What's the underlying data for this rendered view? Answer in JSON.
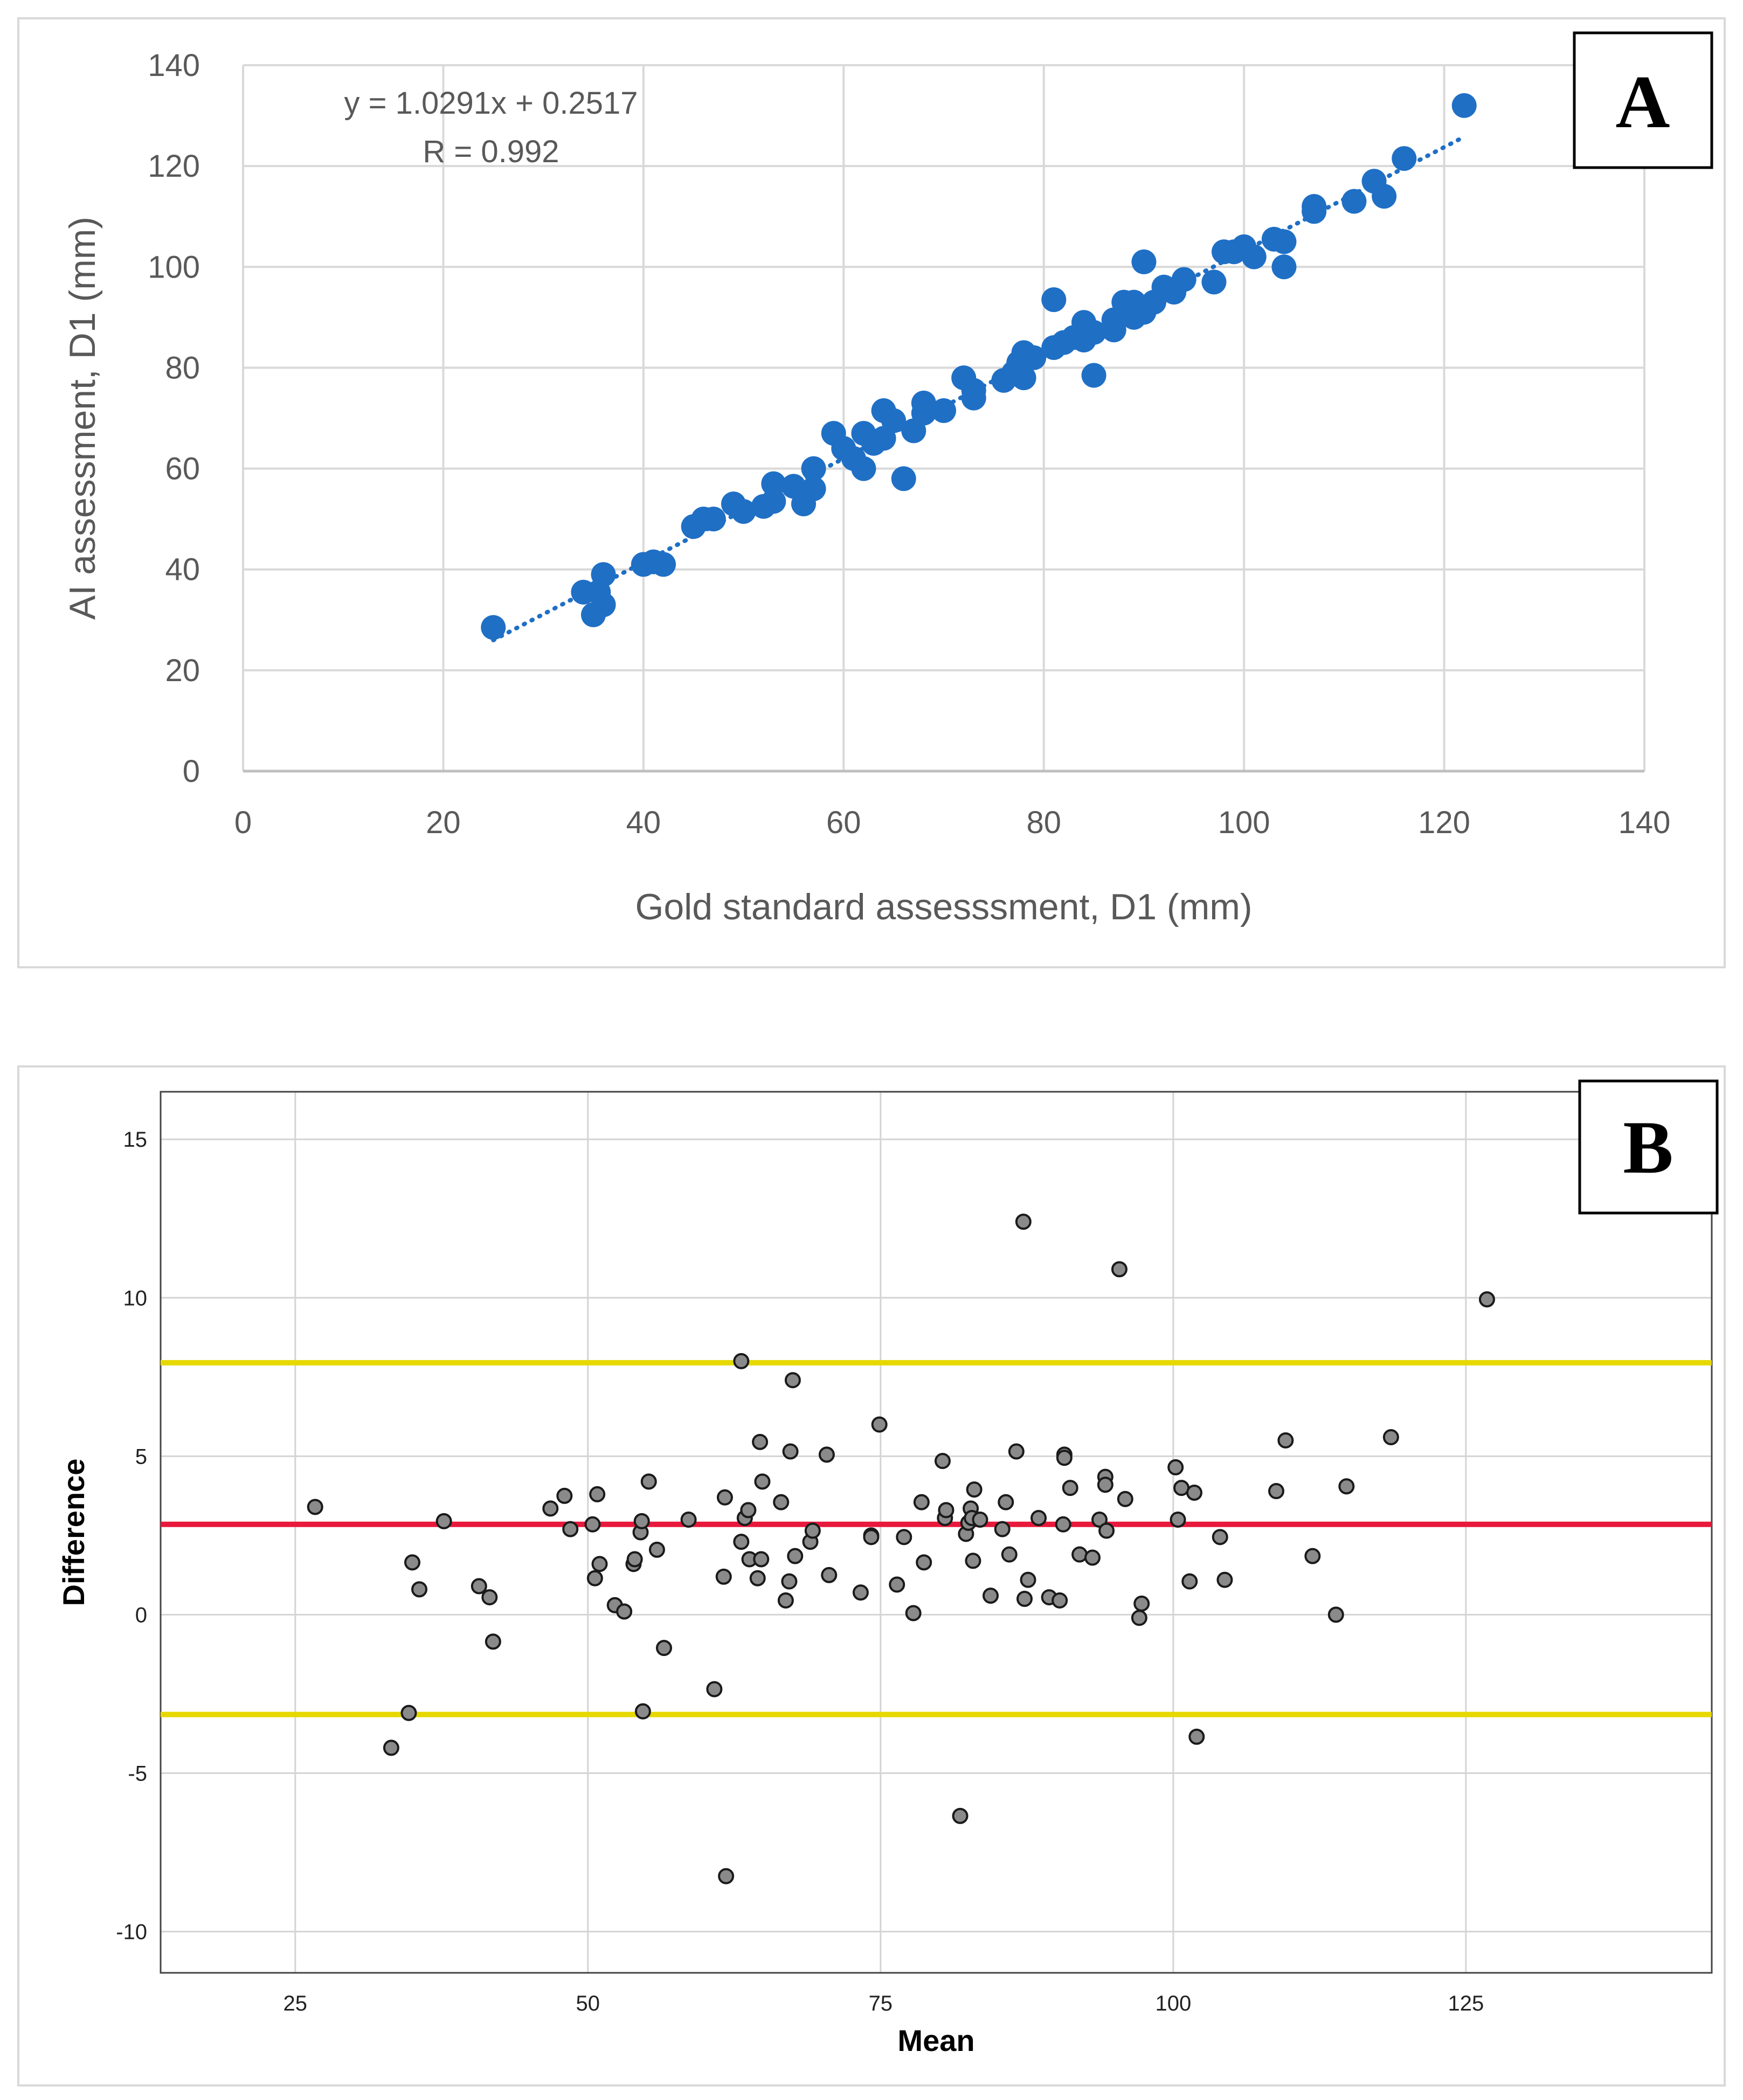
{
  "chart_data": [
    {
      "id": "A",
      "type": "scatter",
      "panel_label": "A",
      "xlabel": "Gold standard assesssment, D1 (mm)",
      "ylabel": "AI assessment, D1 (mm)",
      "xlim": [
        0,
        140
      ],
      "ylim": [
        0,
        140
      ],
      "xticks": [
        0,
        20,
        40,
        60,
        80,
        100,
        120,
        140
      ],
      "yticks": [
        0,
        20,
        40,
        60,
        80,
        100,
        120,
        140
      ],
      "grid": true,
      "equation": "y = 1.0291x + 0.2517",
      "r_label": "R = 0.992",
      "trendline": {
        "slope": 1.0291,
        "intercept": 0.2517,
        "x_range": [
          25,
          122
        ]
      },
      "marker_color": "#1f6fc5",
      "points": [
        [
          25,
          28.5
        ],
        [
          34,
          35.5
        ],
        [
          35,
          31
        ],
        [
          35.5,
          35.5
        ],
        [
          36,
          33
        ],
        [
          36,
          39
        ],
        [
          40,
          41
        ],
        [
          41,
          41.5
        ],
        [
          42,
          41
        ],
        [
          45,
          48.5
        ],
        [
          46,
          50
        ],
        [
          47,
          50
        ],
        [
          49,
          53
        ],
        [
          50,
          51.5
        ],
        [
          52,
          52.5
        ],
        [
          53,
          53.5
        ],
        [
          53,
          57
        ],
        [
          55,
          56.5
        ],
        [
          56,
          53
        ],
        [
          57,
          56
        ],
        [
          57,
          60
        ],
        [
          59,
          67
        ],
        [
          60,
          64
        ],
        [
          61,
          62
        ],
        [
          62,
          67
        ],
        [
          62,
          60
        ],
        [
          63,
          65
        ],
        [
          64,
          71.5
        ],
        [
          65,
          69.5
        ],
        [
          64,
          66
        ],
        [
          66,
          58
        ],
        [
          67,
          67.5
        ],
        [
          68,
          73
        ],
        [
          68,
          71
        ],
        [
          70,
          71.5
        ],
        [
          72,
          78
        ],
        [
          73,
          74
        ],
        [
          73,
          75.5
        ],
        [
          76,
          77.5
        ],
        [
          77,
          79
        ],
        [
          77.5,
          81
        ],
        [
          78,
          83
        ],
        [
          78,
          78
        ],
        [
          79,
          82
        ],
        [
          81,
          93.5
        ],
        [
          81,
          84
        ],
        [
          82,
          85
        ],
        [
          83,
          86
        ],
        [
          84,
          89
        ],
        [
          84,
          85.5
        ],
        [
          85,
          78.5
        ],
        [
          85,
          87
        ],
        [
          87,
          87.5
        ],
        [
          87,
          89.5
        ],
        [
          88,
          93
        ],
        [
          89,
          93
        ],
        [
          89,
          90
        ],
        [
          90,
          91
        ],
        [
          90,
          101
        ],
        [
          91,
          93
        ],
        [
          92,
          96
        ],
        [
          93,
          95
        ],
        [
          94,
          97.5
        ],
        [
          97,
          97
        ],
        [
          98,
          103
        ],
        [
          99,
          103
        ],
        [
          100,
          104
        ],
        [
          101,
          102
        ],
        [
          103,
          105.5
        ],
        [
          104,
          105
        ],
        [
          104,
          100
        ],
        [
          107,
          112
        ],
        [
          107,
          111
        ],
        [
          111,
          113
        ],
        [
          113,
          117
        ],
        [
          114,
          114
        ],
        [
          116,
          121.5
        ],
        [
          122,
          132
        ]
      ]
    },
    {
      "id": "B",
      "type": "scatter",
      "panel_label": "B",
      "xlabel": "Mean",
      "ylabel": "Difference",
      "xlim": [
        13.5,
        146
      ],
      "ylim": [
        -11.3,
        16.5
      ],
      "xticks": [
        25,
        50,
        75,
        100,
        125
      ],
      "yticks": [
        -10,
        -5,
        0,
        5,
        10,
        15
      ],
      "grid": true,
      "limit_lines": [
        {
          "name": "upper-limit",
          "value": 7.95,
          "color": "#e6d800"
        },
        {
          "name": "mean-difference",
          "value": 2.85,
          "color": "#e8193c"
        },
        {
          "name": "lower-limit",
          "value": -3.15,
          "color": "#e6d800"
        }
      ],
      "marker_color": "#8a8a8a",
      "points": [
        [
          26.7,
          3.4
        ],
        [
          33.2,
          -4.2
        ],
        [
          34.7,
          -3.1
        ],
        [
          35,
          1.65
        ],
        [
          35.6,
          0.8
        ],
        [
          37.7,
          2.95
        ],
        [
          40.7,
          0.9
        ],
        [
          41.6,
          0.55
        ],
        [
          41.9,
          -0.85
        ],
        [
          46.8,
          3.35
        ],
        [
          48,
          3.75
        ],
        [
          48.5,
          2.7
        ],
        [
          50.4,
          2.85
        ],
        [
          50.6,
          1.15
        ],
        [
          50.8,
          3.8
        ],
        [
          51,
          1.6
        ],
        [
          52.3,
          0.3
        ],
        [
          53.1,
          0.1
        ],
        [
          53.9,
          1.6
        ],
        [
          54,
          1.75
        ],
        [
          54.5,
          2.6
        ],
        [
          54.7,
          -3.05
        ],
        [
          54.6,
          2.95
        ],
        [
          55.2,
          4.2
        ],
        [
          55.9,
          2.05
        ],
        [
          56.5,
          -1.05
        ],
        [
          58.6,
          3
        ],
        [
          60.8,
          -2.35
        ],
        [
          61.6,
          1.2
        ],
        [
          61.7,
          3.7
        ],
        [
          61.8,
          -8.25
        ],
        [
          63.1,
          8
        ],
        [
          63.1,
          2.3
        ],
        [
          63.4,
          3.05
        ],
        [
          63.7,
          3.3
        ],
        [
          63.8,
          1.75
        ],
        [
          64.5,
          1.15
        ],
        [
          64.7,
          5.45
        ],
        [
          64.8,
          1.75
        ],
        [
          64.9,
          4.2
        ],
        [
          66.5,
          3.55
        ],
        [
          66.9,
          0.45
        ],
        [
          67.2,
          1.05
        ],
        [
          67.3,
          5.15
        ],
        [
          67.5,
          7.4
        ],
        [
          67.7,
          1.85
        ],
        [
          69,
          2.3
        ],
        [
          69.2,
          2.65
        ],
        [
          70.4,
          5.05
        ],
        [
          70.6,
          1.25
        ],
        [
          73.3,
          0.7
        ],
        [
          74.2,
          2.5
        ],
        [
          74.2,
          2.45
        ],
        [
          74.9,
          6
        ],
        [
          76.4,
          0.95
        ],
        [
          77,
          2.45
        ],
        [
          77.8,
          0.05
        ],
        [
          78.5,
          3.55
        ],
        [
          78.7,
          1.65
        ],
        [
          80.3,
          4.85
        ],
        [
          80.5,
          3.05
        ],
        [
          80.6,
          3.3
        ],
        [
          81.8,
          -6.35
        ],
        [
          82.3,
          2.55
        ],
        [
          82.5,
          2.9
        ],
        [
          82.7,
          3.35
        ],
        [
          82.8,
          3.05
        ],
        [
          82.9,
          1.7
        ],
        [
          83,
          3.95
        ],
        [
          83.5,
          3
        ],
        [
          84.4,
          0.6
        ],
        [
          85.4,
          2.7
        ],
        [
          85.7,
          3.55
        ],
        [
          86,
          1.9
        ],
        [
          86.6,
          5.15
        ],
        [
          87.2,
          12.4
        ],
        [
          87.3,
          0.5
        ],
        [
          87.6,
          1.1
        ],
        [
          88.5,
          3.05
        ],
        [
          89.4,
          0.55
        ],
        [
          90.3,
          0.45
        ],
        [
          90.6,
          2.85
        ],
        [
          90.7,
          5.05
        ],
        [
          90.7,
          4.95
        ],
        [
          91.2,
          4
        ],
        [
          92,
          1.9
        ],
        [
          93.1,
          1.8
        ],
        [
          93.7,
          3
        ],
        [
          94.2,
          4.35
        ],
        [
          94.2,
          4.1
        ],
        [
          94.3,
          2.65
        ],
        [
          95.4,
          10.9
        ],
        [
          95.9,
          3.65
        ],
        [
          97.1,
          -0.1
        ],
        [
          97.3,
          0.35
        ],
        [
          100.2,
          4.65
        ],
        [
          100.4,
          3
        ],
        [
          100.7,
          4
        ],
        [
          101.4,
          1.05
        ],
        [
          101.8,
          3.85
        ],
        [
          102,
          -3.85
        ],
        [
          104,
          2.45
        ],
        [
          104.4,
          1.1
        ],
        [
          108.8,
          3.9
        ],
        [
          109.6,
          5.5
        ],
        [
          111.9,
          1.85
        ],
        [
          113.9,
          0
        ],
        [
          114.8,
          4.05
        ],
        [
          118.6,
          5.6
        ],
        [
          126.8,
          9.95
        ]
      ]
    }
  ]
}
